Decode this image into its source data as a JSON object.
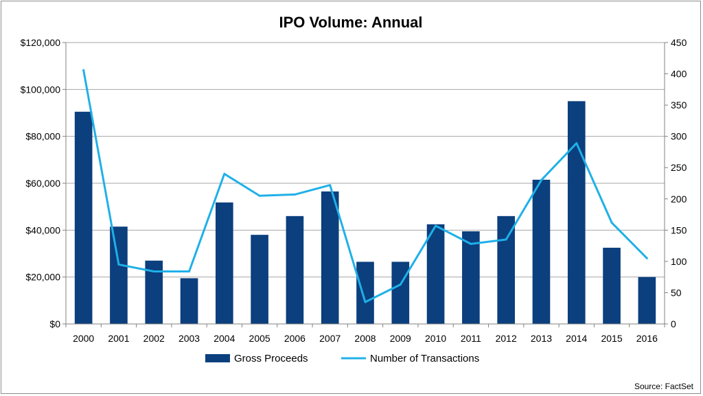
{
  "chart_data": {
    "type": "bar",
    "title": "IPO Volume: Annual",
    "categories": [
      "2000",
      "2001",
      "2002",
      "2003",
      "2004",
      "2005",
      "2006",
      "2007",
      "2008",
      "2009",
      "2010",
      "2011",
      "2012",
      "2013",
      "2014",
      "2015",
      "2016"
    ],
    "series": [
      {
        "name": "Gross Proceeds",
        "type": "bar",
        "axis": "left",
        "color": "#0b3f7e",
        "values": [
          90500,
          41500,
          27000,
          19500,
          51800,
          38000,
          46000,
          56500,
          26500,
          26500,
          42500,
          39500,
          46000,
          61500,
          95000,
          32500,
          20000
        ]
      },
      {
        "name": "Number of Transactions",
        "type": "line",
        "axis": "right",
        "color": "#1fb0e8",
        "values": [
          406,
          95,
          84,
          84,
          240,
          205,
          207,
          222,
          35,
          63,
          157,
          128,
          135,
          230,
          289,
          162,
          105
        ]
      }
    ],
    "y_left": {
      "range": [
        0,
        120000
      ],
      "ticks": [
        0,
        20000,
        40000,
        60000,
        80000,
        100000,
        120000
      ],
      "tick_labels": [
        "$0",
        "$20,000",
        "$40,000",
        "$60,000",
        "$80,000",
        "$100,000",
        "$120,000"
      ]
    },
    "y_right": {
      "range": [
        0,
        450
      ],
      "ticks": [
        0,
        50,
        100,
        150,
        200,
        250,
        300,
        350,
        400,
        450
      ],
      "tick_labels": [
        "0",
        "50",
        "100",
        "150",
        "200",
        "250",
        "300",
        "350",
        "400",
        "450"
      ]
    },
    "grid": true,
    "legend_position": "bottom",
    "source": "Source: FactSet"
  }
}
